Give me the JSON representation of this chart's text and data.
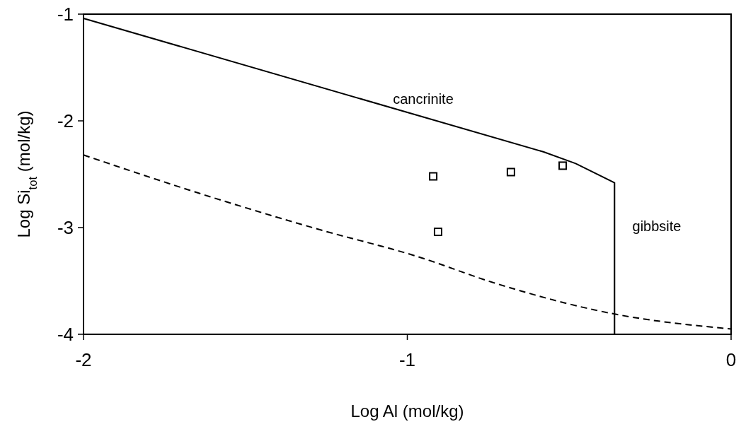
{
  "chart_data": {
    "type": "line",
    "xlabel": "Log Al (mol/kg)",
    "ylabel": "Log Si$_{tot}$ (mol/kg)",
    "xlim": [
      -2,
      0
    ],
    "ylim": [
      -4,
      -1
    ],
    "xticks": [
      -2,
      -1,
      0
    ],
    "yticks": [
      -4,
      -3,
      -2,
      -1
    ],
    "grid": false,
    "series": [
      {
        "color": "#000000",
        "line_style": "solid",
        "marker": "none",
        "x": [
          -2,
          -0.58,
          -0.48,
          -0.36,
          -0.36
        ],
        "values": [
          -1.04,
          -2.29,
          -2.4,
          -2.58,
          -4
        ]
      },
      {
        "color": "#000000",
        "line_style": "dashed",
        "marker": "none",
        "x": [
          -2,
          -1.61,
          -1.27,
          -0.97,
          -0.73,
          -0.36,
          0
        ],
        "values": [
          -2.32,
          -2.71,
          -3.02,
          -3.27,
          -3.52,
          -3.81,
          -3.95
        ]
      },
      {
        "type": "scatter",
        "color": "#000000",
        "marker": "square",
        "x": [
          -0.92,
          -0.68,
          -0.52,
          -0.905
        ],
        "values": [
          -2.52,
          -2.48,
          -2.42,
          -3.04
        ]
      }
    ],
    "annotations": [
      "cancrinite",
      "gibbsite"
    ]
  }
}
